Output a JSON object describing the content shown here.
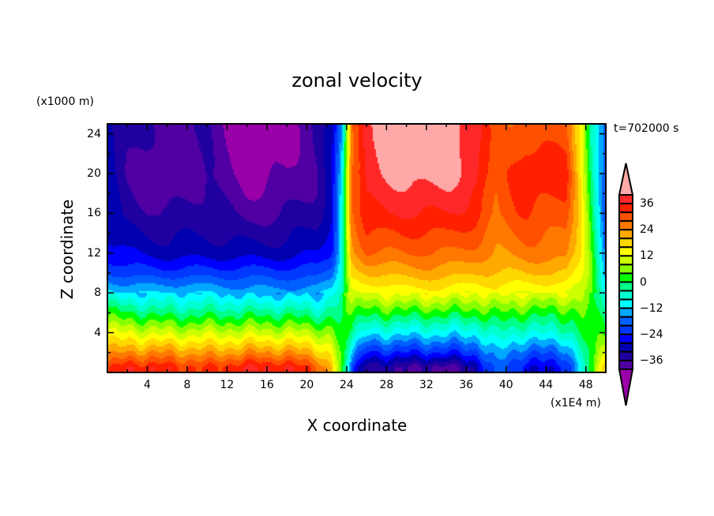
{
  "chart_data": {
    "type": "heatmap",
    "subtype": "filled-contour",
    "title": "zonal velocity",
    "xlabel": "X coordinate",
    "ylabel": "Z coordinate",
    "x_unit": "(x1E4 m)",
    "z_unit": "(x1000 m)",
    "annotation": "t=702000 s",
    "xlim": [
      0,
      50
    ],
    "ylim": [
      0,
      25
    ],
    "xticks": [
      4,
      8,
      12,
      16,
      20,
      24,
      28,
      32,
      36,
      40,
      44,
      48
    ],
    "yticks": [
      4,
      8,
      12,
      16,
      20,
      24
    ],
    "colorbar": {
      "levels": [
        -40,
        -36,
        -32,
        -28,
        -24,
        -20,
        -16,
        -12,
        -8,
        -4,
        0,
        4,
        8,
        12,
        16,
        20,
        24,
        28,
        32,
        36,
        40
      ],
      "labels": [
        "36",
        "24",
        "12",
        "0",
        "-12",
        "-24",
        "-36"
      ],
      "label_values": [
        36,
        24,
        12,
        0,
        -12,
        -24,
        -36
      ],
      "colors": [
        "#9a00a8",
        "#5000a2",
        "#2000a0",
        "#0000b0",
        "#0000ff",
        "#0038ff",
        "#0060ff",
        "#00a8ff",
        "#00ffff",
        "#00ffd0",
        "#00ff88",
        "#00ff00",
        "#88ff00",
        "#ccff00",
        "#ffff00",
        "#ffd800",
        "#ffa800",
        "#ff7800",
        "#ff5000",
        "#ff2000",
        "#ff2828",
        "#ffa8a8"
      ],
      "extend": "both"
    },
    "grid_x": [
      0,
      2,
      6,
      10,
      14,
      18,
      21,
      22.5,
      23.5,
      24.5,
      26,
      30,
      34,
      37,
      39,
      42,
      46,
      47.5,
      48.5,
      50
    ],
    "grid_z": [
      0.5,
      2,
      4,
      6,
      8,
      10,
      12,
      16,
      20,
      24
    ],
    "values_by_x": [
      [
        30,
        22,
        12,
        2,
        -10,
        -20,
        -26,
        -30,
        -30,
        -30
      ],
      [
        36,
        24,
        12,
        0,
        -12,
        -22,
        -28,
        -34,
        -36,
        -34
      ],
      [
        34,
        24,
        10,
        -2,
        -12,
        -22,
        -30,
        -36,
        -40,
        -38
      ],
      [
        32,
        22,
        10,
        -2,
        -12,
        -22,
        -30,
        -34,
        -36,
        -36
      ],
      [
        36,
        24,
        10,
        -2,
        -14,
        -22,
        -30,
        -38,
        -42,
        -44
      ],
      [
        36,
        24,
        10,
        -2,
        -14,
        -22,
        -30,
        -36,
        -40,
        -42
      ],
      [
        30,
        20,
        8,
        -4,
        -14,
        -22,
        -28,
        -34,
        -36,
        -36
      ],
      [
        20,
        14,
        6,
        -2,
        -10,
        -18,
        -24,
        -28,
        -30,
        -30
      ],
      [
        2,
        2,
        0,
        -2,
        -4,
        -6,
        -8,
        -10,
        -12,
        -14
      ],
      [
        -20,
        -12,
        -2,
        4,
        12,
        18,
        22,
        26,
        28,
        28
      ],
      [
        -34,
        -24,
        -10,
        2,
        12,
        20,
        28,
        36,
        38,
        38
      ],
      [
        -36,
        -24,
        -10,
        2,
        14,
        22,
        28,
        36,
        42,
        44
      ],
      [
        -38,
        -24,
        -10,
        2,
        14,
        22,
        28,
        36,
        42,
        44
      ],
      [
        -32,
        -22,
        -10,
        2,
        12,
        20,
        26,
        34,
        38,
        38
      ],
      [
        -16,
        -12,
        -4,
        4,
        14,
        20,
        24,
        28,
        28,
        28
      ],
      [
        -28,
        -20,
        -8,
        2,
        12,
        20,
        26,
        32,
        36,
        30
      ],
      [
        -26,
        -18,
        -6,
        2,
        12,
        20,
        26,
        30,
        34,
        30
      ],
      [
        -10,
        -6,
        0,
        4,
        10,
        14,
        16,
        16,
        16,
        16
      ],
      [
        4,
        4,
        6,
        6,
        6,
        6,
        4,
        2,
        0,
        -4
      ],
      [
        18,
        10,
        0,
        -6,
        -12,
        -16,
        -18,
        -20,
        -20,
        -20
      ]
    ]
  }
}
